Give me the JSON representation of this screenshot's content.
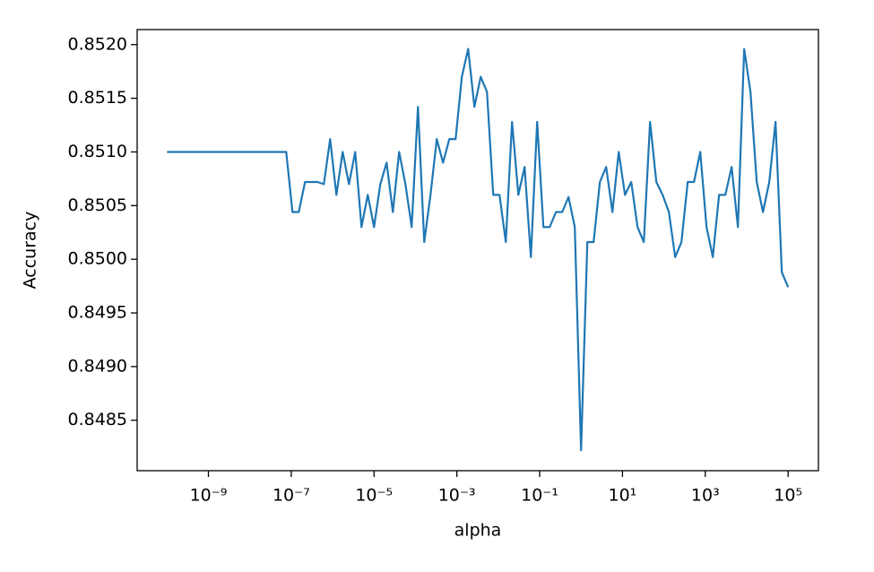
{
  "chart_data": {
    "type": "line",
    "x_label": "alpha",
    "y_label": "Accuracy",
    "xscale": "log",
    "grid": false,
    "xlim": [
      1.9e-11,
      540000
    ],
    "ylim": [
      0.84803,
      0.85214
    ],
    "xticks": [
      {
        "value": 1e-09,
        "label": "10⁻⁹"
      },
      {
        "value": 1e-07,
        "label": "10⁻⁷"
      },
      {
        "value": 1e-05,
        "label": "10⁻⁵"
      },
      {
        "value": 0.001,
        "label": "10⁻³"
      },
      {
        "value": 0.1,
        "label": "10⁻¹"
      },
      {
        "value": 10,
        "label": "10¹"
      },
      {
        "value": 1000,
        "label": "10³"
      },
      {
        "value": 100000,
        "label": "10⁵"
      }
    ],
    "yticks": [
      0.8485,
      {
        "value": 0.849,
        "label": "0.8490"
      },
      0.8495,
      {
        "value": 0.85,
        "label": "0.8500"
      },
      0.8505,
      {
        "value": 0.851,
        "label": "0.8510"
      },
      0.8515,
      {
        "value": 0.852,
        "label": "0.8520"
      }
    ],
    "x": [
      1e-10,
      1.4175e-10,
      2.0092e-10,
      2.848e-10,
      4.037e-10,
      5.7224e-10,
      8.1113e-10,
      1.1498e-09,
      1.6298e-09,
      2.3101e-09,
      3.2745e-09,
      4.6416e-09,
      6.5793e-09,
      9.326e-09,
      1.3219e-08,
      1.8738e-08,
      2.6561e-08,
      3.7649e-08,
      5.3367e-08,
      7.5646e-08,
      1.0723e-07,
      1.5199e-07,
      2.1544e-07,
      3.0539e-07,
      4.3288e-07,
      6.1359e-07,
      8.6975e-07,
      1.2328e-06,
      1.7475e-06,
      2.4771e-06,
      3.5112e-06,
      4.977e-06,
      7.0548e-06,
      1e-05,
      1.4175e-05,
      2.0092e-05,
      2.848e-05,
      4.037e-05,
      5.7224e-05,
      8.1113e-05,
      0.00011498,
      0.00016298,
      0.00023101,
      0.00032745,
      0.00046416,
      0.00065793,
      0.0009326,
      0.0013219,
      0.0018738,
      0.0026561,
      0.0037649,
      0.0053367,
      0.0075646,
      0.010723,
      0.015199,
      0.021544,
      0.030539,
      0.043288,
      0.061359,
      0.086975,
      0.12328,
      0.17475,
      0.24771,
      0.35112,
      0.4977,
      0.70548,
      1,
      1.4175,
      2.0092,
      2.848,
      4.037,
      5.7224,
      8.1113,
      11.498,
      16.298,
      23.101,
      32.745,
      46.416,
      65.793,
      93.26,
      132.19,
      187.38,
      265.61,
      376.49,
      533.67,
      756.46,
      1072.3,
      1519.9,
      2154.4,
      3053.9,
      4328.8,
      6135.9,
      8697.5,
      12328,
      17475,
      24771,
      35112,
      49770,
      70548,
      100000
    ],
    "series": [
      {
        "color": "#1f77b4",
        "values": [
          0.851,
          0.851,
          0.851,
          0.851,
          0.851,
          0.851,
          0.851,
          0.851,
          0.851,
          0.851,
          0.851,
          0.851,
          0.851,
          0.851,
          0.851,
          0.851,
          0.851,
          0.851,
          0.851,
          0.851,
          0.85044,
          0.85044,
          0.85072,
          0.85072,
          0.85072,
          0.8507,
          0.85112,
          0.8506,
          0.851,
          0.8507,
          0.851,
          0.8503,
          0.8506,
          0.8503,
          0.8507,
          0.8509,
          0.85044,
          0.851,
          0.8507,
          0.8503,
          0.85142,
          0.85016,
          0.8506,
          0.85112,
          0.8509,
          0.85112,
          0.85112,
          0.8517,
          0.85196,
          0.85142,
          0.8517,
          0.85156,
          0.8506,
          0.8506,
          0.85016,
          0.85128,
          0.8506,
          0.85086,
          0.85002,
          0.85128,
          0.8503,
          0.8503,
          0.85044,
          0.85044,
          0.85058,
          0.8503,
          0.84822,
          0.85016,
          0.85016,
          0.85072,
          0.85086,
          0.85044,
          0.851,
          0.8506,
          0.85072,
          0.8503,
          0.85016,
          0.85128,
          0.85072,
          0.8506,
          0.85044,
          0.85002,
          0.85016,
          0.85072,
          0.85072,
          0.851,
          0.8503,
          0.85002,
          0.8506,
          0.8506,
          0.85086,
          0.8503,
          0.85196,
          0.85156,
          0.85072,
          0.85044,
          0.85072,
          0.85128,
          0.84988,
          0.84974
        ]
      }
    ]
  }
}
